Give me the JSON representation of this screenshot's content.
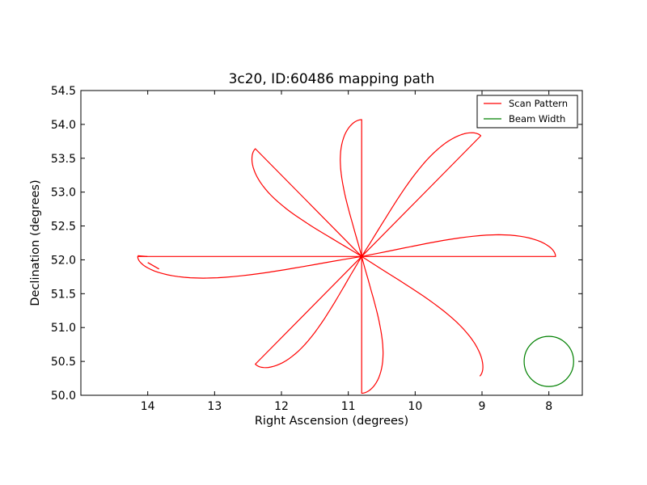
{
  "chart_data": {
    "type": "line",
    "title": "3c20, ID:60486 mapping path",
    "xlabel": "Right Ascension (degrees)",
    "ylabel": "Declination (degrees)",
    "xlim": [
      15.0,
      7.5
    ],
    "ylim": [
      50.0,
      54.5
    ],
    "x_inverted": true,
    "grid": false,
    "legend_position": "top-right",
    "x_ticks": [
      14,
      13,
      12,
      11,
      10,
      9,
      8
    ],
    "x_tick_labels": [
      "14",
      "13",
      "12",
      "11",
      "10",
      "9",
      "8"
    ],
    "y_ticks": [
      50.0,
      50.5,
      51.0,
      51.5,
      52.0,
      52.5,
      53.0,
      53.5,
      54.0,
      54.5
    ],
    "y_tick_labels": [
      "50.0",
      "50.5",
      "51.0",
      "51.5",
      "52.0",
      "52.5",
      "53.0",
      "53.5",
      "54.0",
      "54.5"
    ],
    "series": [
      {
        "name": "Scan Pattern",
        "color": "#ff0000",
        "kind": "rose",
        "center": [
          10.8,
          52.05
        ],
        "petal_angles_deg": [
          0,
          45,
          90,
          135,
          180,
          225,
          270,
          315
        ],
        "petal_lengths_deg": [
          2.9,
          2.52,
          2.02,
          2.25,
          3.35,
          2.25,
          2.02,
          2.5
        ],
        "petal_half_width_deg": 0.32,
        "start_point": [
          14.15,
          52.06
        ],
        "end_point": [
          14.0,
          51.96
        ]
      },
      {
        "name": "Beam Width",
        "color": "#008000",
        "kind": "circle",
        "center": [
          8.0,
          50.5
        ],
        "radius_deg": 0.37
      }
    ]
  }
}
